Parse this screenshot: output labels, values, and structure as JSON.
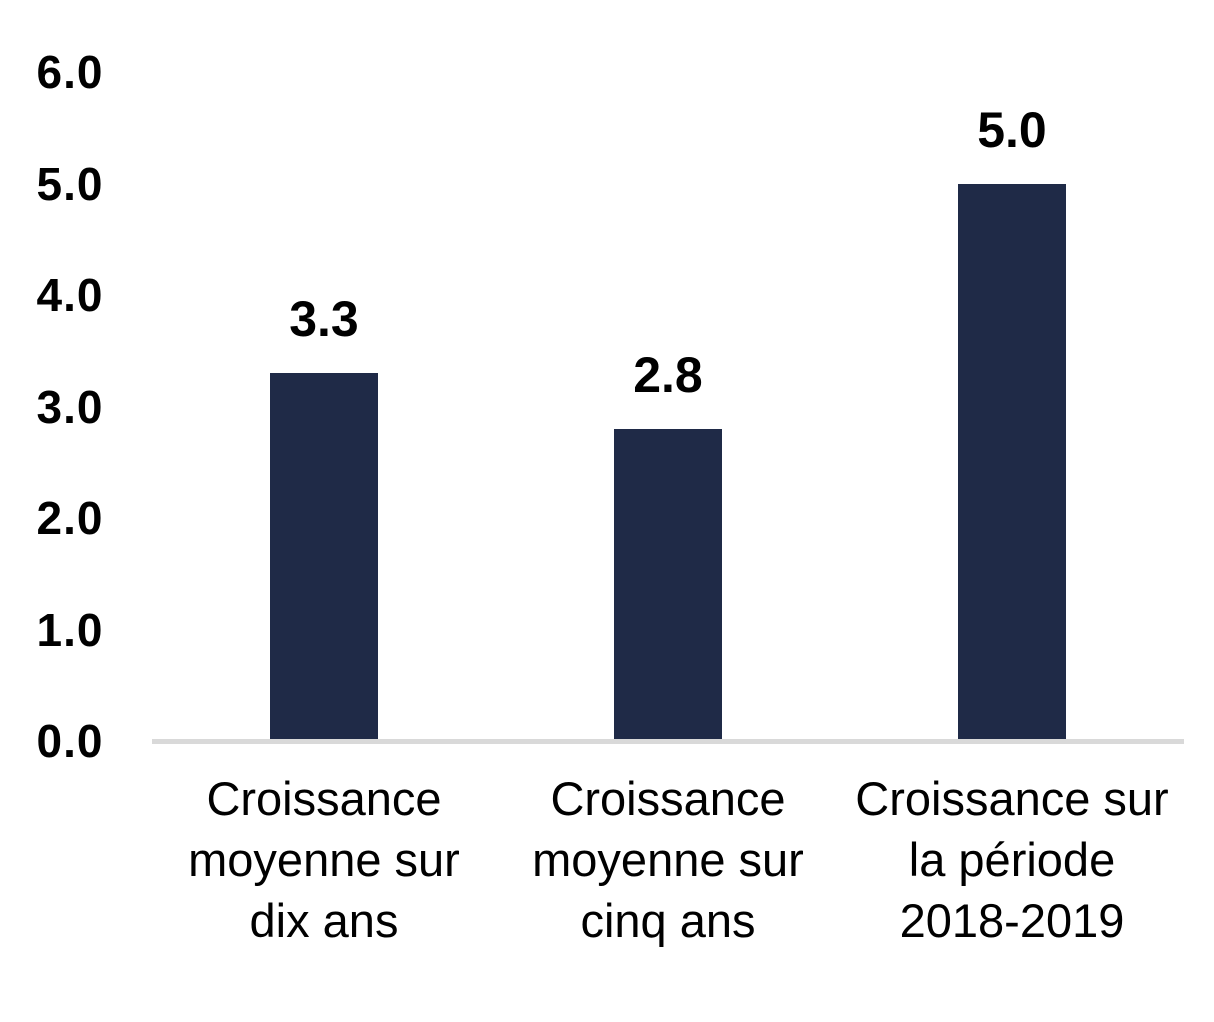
{
  "chart_data": {
    "type": "bar",
    "title": "",
    "xlabel": "",
    "ylabel": "",
    "categories": [
      "Croissance moyenne sur dix ans",
      "Croissance moyenne sur cinq ans",
      "Croissance sur la période 2018-2019"
    ],
    "category_lines": [
      [
        "Croissance",
        "moyenne sur",
        "dix ans"
      ],
      [
        "Croissance",
        "moyenne sur",
        "cinq ans"
      ],
      [
        "Croissance sur",
        "la période",
        "2018-2019"
      ]
    ],
    "values": [
      3.3,
      2.8,
      5.0
    ],
    "value_labels": [
      "3.3",
      "2.8",
      "5.0"
    ],
    "ylim": [
      0,
      6
    ],
    "y_ticks": [
      0,
      1,
      2,
      3,
      4,
      5,
      6
    ],
    "y_tick_labels": [
      "0.0",
      "1.0",
      "2.0",
      "3.0",
      "4.0",
      "5.0",
      "6.0"
    ],
    "grid": false,
    "legend": "none",
    "bar_color": "#1F2A47",
    "axis_line_color": "#D9D9D9",
    "text_color": "#000000",
    "background_color": "#FFFFFF"
  }
}
